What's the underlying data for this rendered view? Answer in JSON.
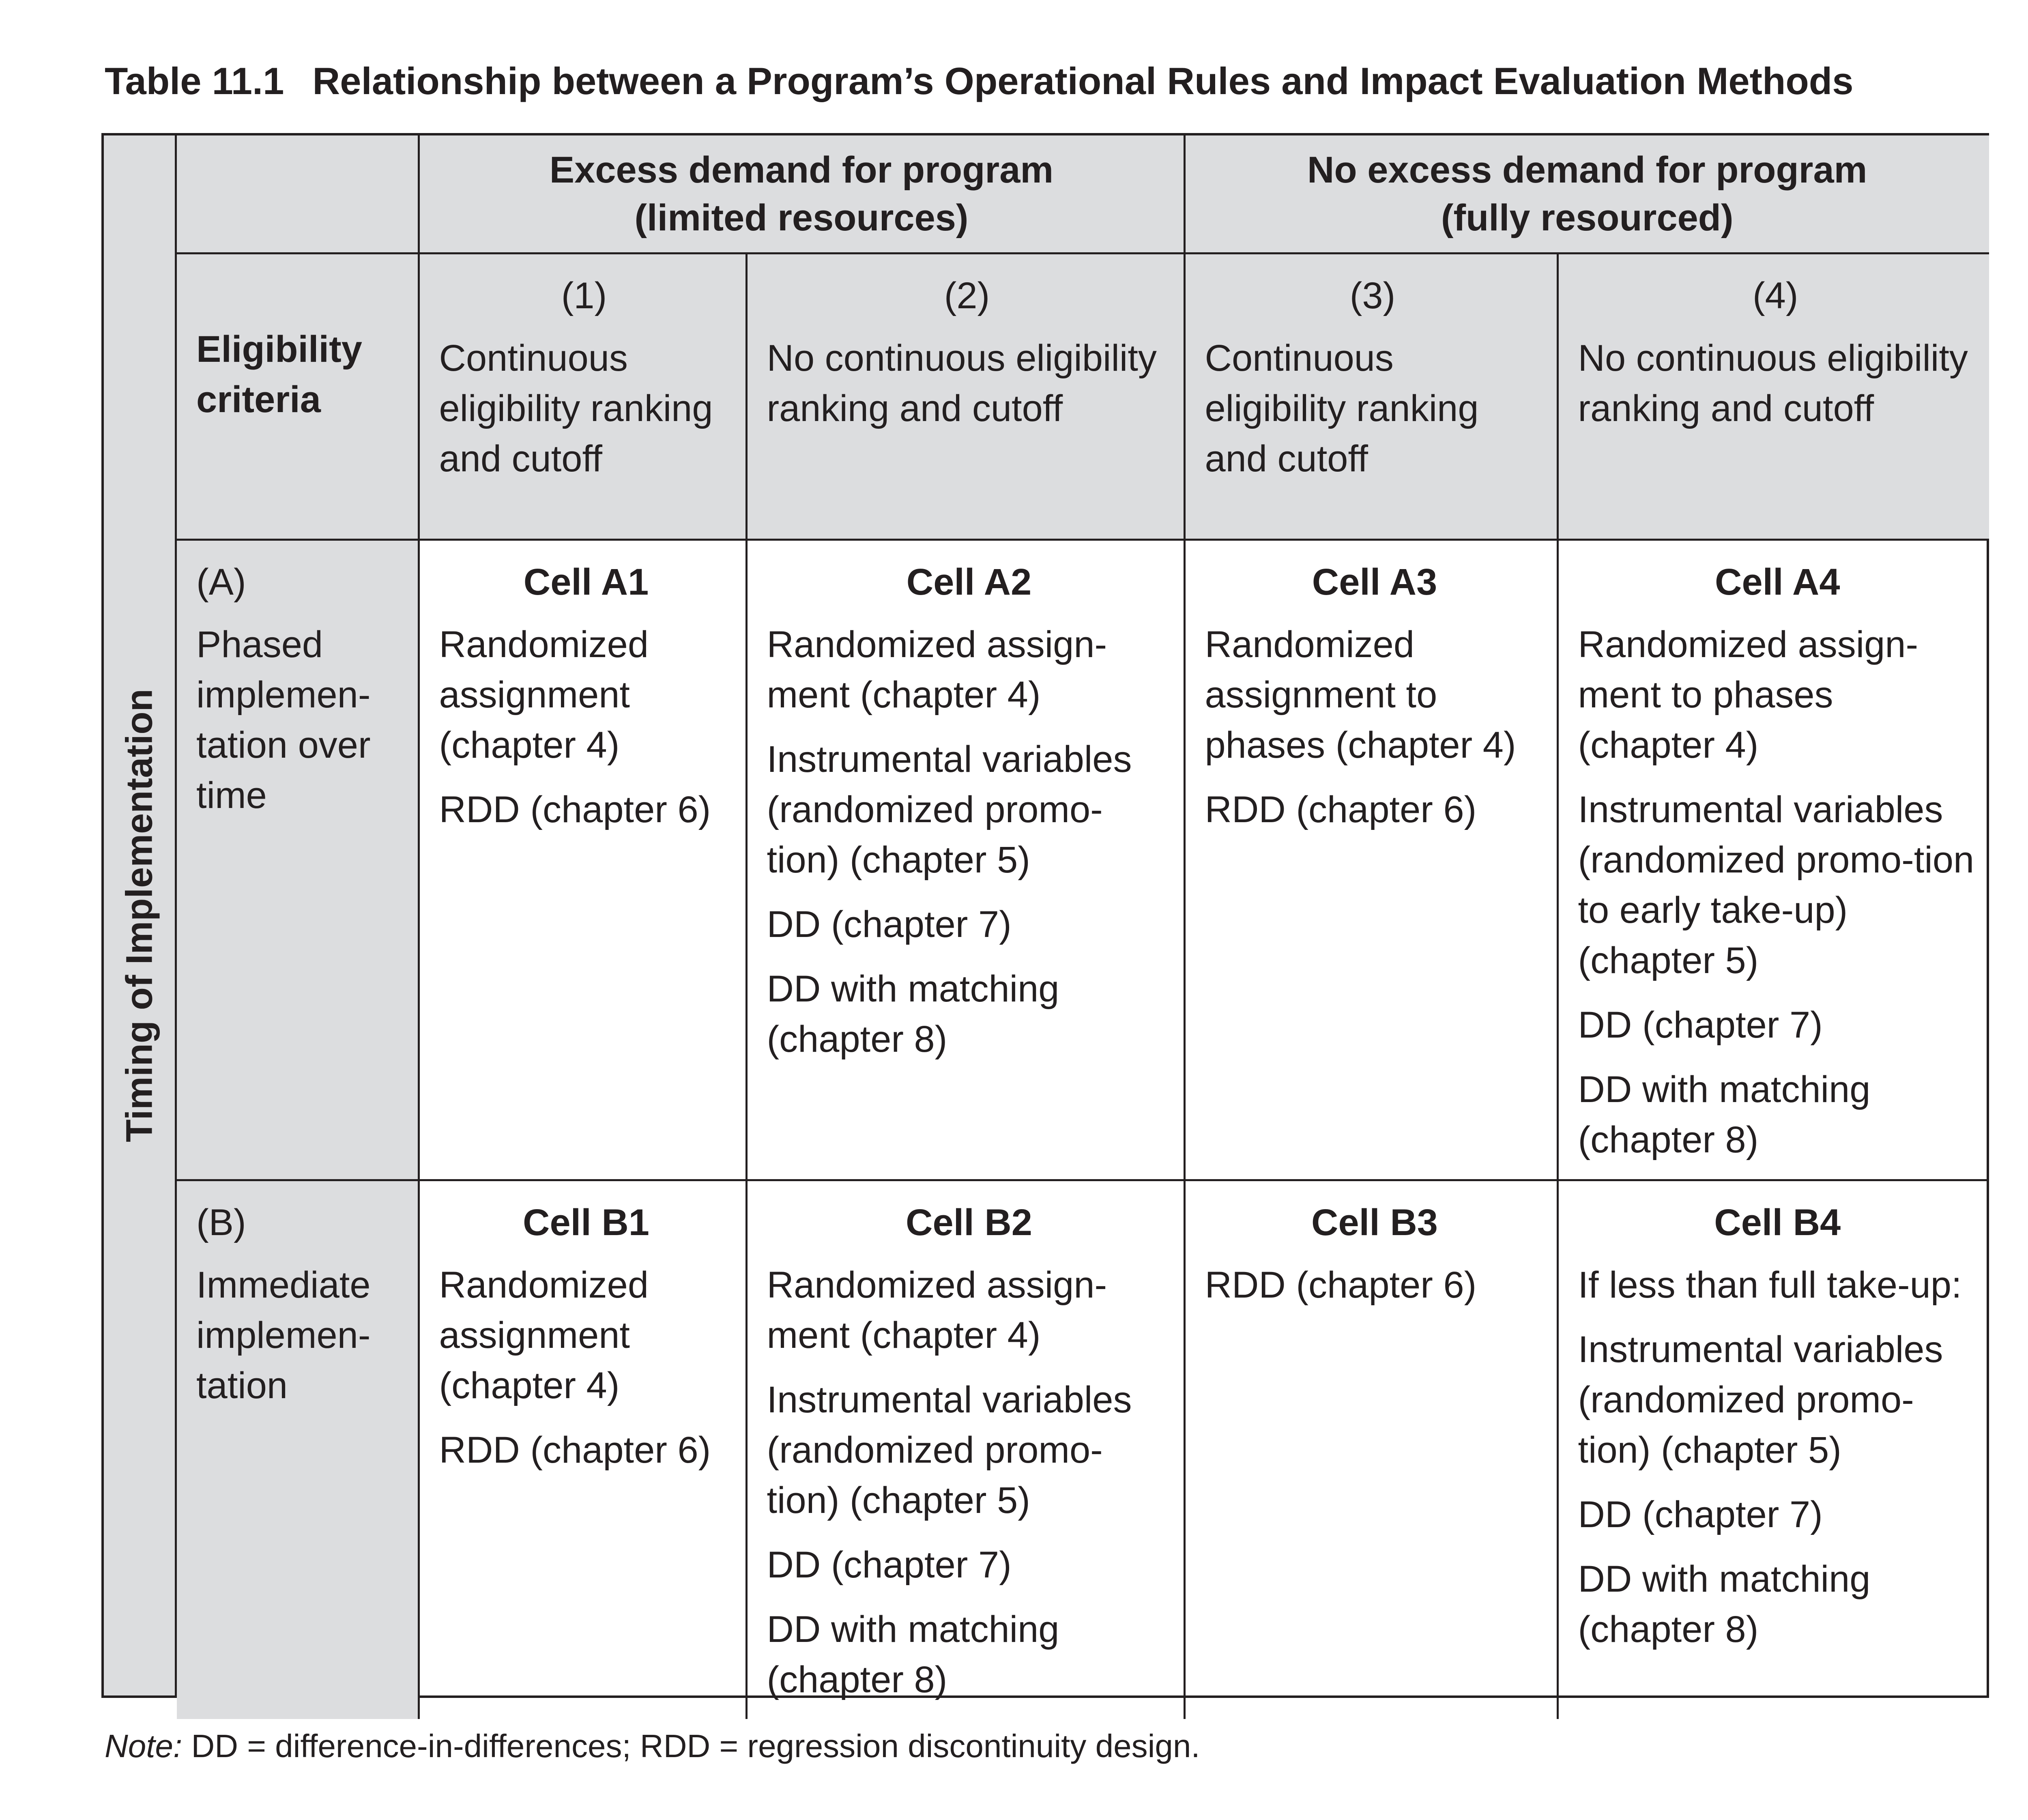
{
  "caption": {
    "number": "Table 11.1",
    "title": "Relationship between a Program’s Operational Rules and Impact Evaluation Methods"
  },
  "side_label": "Timing of Implementation",
  "groups": [
    {
      "line1": "Excess demand for program",
      "line2": "(limited resources)"
    },
    {
      "line1": "No excess demand for program",
      "line2": "(fully resourced)"
    }
  ],
  "eligibility_label": "Eligibility criteria",
  "columns": [
    {
      "number": "(1)",
      "text": "Continuous eligibility ranking and cutoff"
    },
    {
      "number": "(2)",
      "text": "No continuous eligibility ranking and cutoff"
    },
    {
      "number": "(3)",
      "text": "Continuous eligibility ranking and cutoff"
    },
    {
      "number": "(4)",
      "text": "No continuous eligibility ranking and cutoff"
    }
  ],
  "rows": [
    {
      "letter": "(A)",
      "label": "Phased implemen-tation over time",
      "cells": [
        {
          "title": "Cell A1",
          "items": [
            "Randomized assignment (chapter 4)",
            "RDD (chapter 6)"
          ]
        },
        {
          "title": "Cell A2",
          "items": [
            "Randomized assign-ment (chapter 4)",
            "Instrumental variables (randomized promo-tion) (chapter 5)",
            "DD (chapter 7)",
            "DD with matching (chapter 8)"
          ]
        },
        {
          "title": "Cell A3",
          "items": [
            "Randomized assignment to phases (chapter 4)",
            "RDD (chapter 6)"
          ]
        },
        {
          "title": "Cell A4",
          "items": [
            "Randomized assign-ment to phases (chapter 4)",
            "Instrumental variables (randomized promo-tion to early take-up) (chapter 5)",
            "DD (chapter 7)",
            "DD with matching (chapter 8)"
          ]
        }
      ]
    },
    {
      "letter": "(B)",
      "label": "Immediate implemen-tation",
      "cells": [
        {
          "title": "Cell B1",
          "items": [
            "Randomized assignment (chapter 4)",
            "RDD (chapter 6)"
          ]
        },
        {
          "title": "Cell B2",
          "items": [
            "Randomized assign-ment (chapter 4)",
            "Instrumental variables (randomized promo-tion) (chapter 5)",
            "DD (chapter 7)",
            "DD with matching (chapter 8)"
          ]
        },
        {
          "title": "Cell B3",
          "items": [
            "RDD (chapter 6)"
          ]
        },
        {
          "title": "Cell B4",
          "items": [
            "If less than full take-up:",
            "Instrumental variables (randomized promo-tion) (chapter 5)",
            "DD (chapter 7)",
            "DD with matching (chapter 8)"
          ]
        }
      ]
    }
  ],
  "note": {
    "label": "Note:",
    "text": " DD = difference-in-differences; RDD = regression discontinuity design."
  }
}
